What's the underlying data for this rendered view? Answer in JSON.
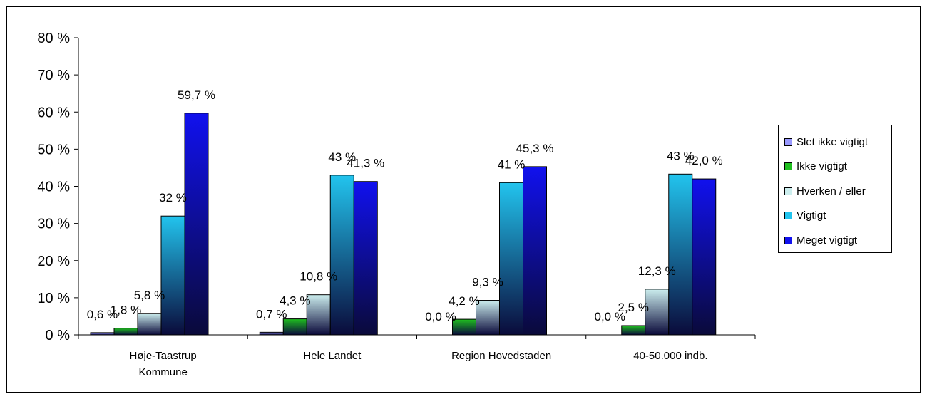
{
  "chart_data": {
    "type": "bar",
    "categories": [
      [
        "Høje-Taastrup",
        "Kommune"
      ],
      [
        "Hele Landet"
      ],
      [
        "Region Hovedstaden"
      ],
      [
        "40-50.000 indb."
      ]
    ],
    "series": [
      {
        "name": "Slet ikke vigtigt",
        "color": "#9999ff",
        "values": [
          0.6,
          0.7,
          0.0,
          0.0
        ],
        "labels": [
          "0,6 %",
          "0,7 %",
          "0,0 %",
          "0,0 %"
        ]
      },
      {
        "name": "Ikke vigtigt",
        "color": "#1fbf1f",
        "values": [
          1.8,
          4.3,
          4.2,
          2.5
        ],
        "labels": [
          "1,8 %",
          "4,3 %",
          "4,2 %",
          "2,5 %"
        ]
      },
      {
        "name": "Hverken / eller",
        "color": "#cceeee",
        "values": [
          5.8,
          10.8,
          9.3,
          12.3
        ],
        "labels": [
          "5,8 %",
          "10,8 %",
          "9,3 %",
          "12,3 %"
        ]
      },
      {
        "name": "Vigtigt",
        "color": "#22c4ee",
        "values": [
          32,
          43,
          41,
          43.3
        ],
        "labels": [
          "32 %",
          "43 %",
          "41 %",
          "43 %"
        ]
      },
      {
        "name": "Meget vigtigt",
        "color": "#1111ee",
        "values": [
          59.7,
          41.3,
          45.3,
          42.0
        ],
        "labels": [
          "59,7 %",
          "41,3 %",
          "45,3 %",
          "42,0 %"
        ]
      }
    ],
    "y_ticks": [
      "0 %",
      "10 %",
      "20 %",
      "30 %",
      "40 %",
      "50 %",
      "60 %",
      "70 %",
      "80 %"
    ],
    "ylim": [
      0,
      80
    ],
    "grid": false,
    "legend_position": "right"
  }
}
